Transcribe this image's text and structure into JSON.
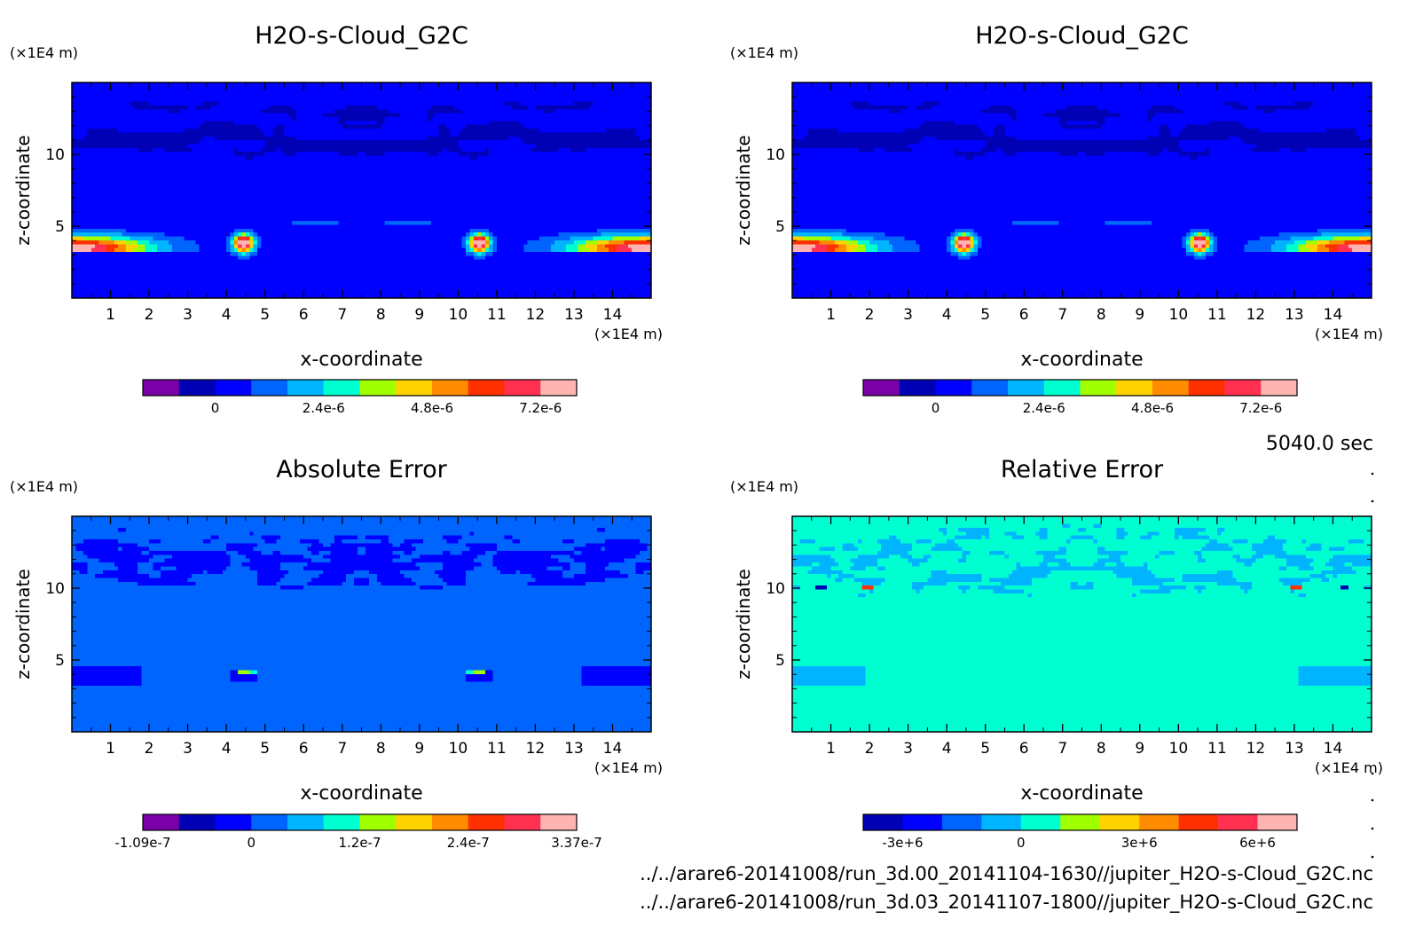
{
  "time_label": "5040.0 sec",
  "files": [
    "../../arare6-20141008/run_3d.00_20141104-1630//jupiter_H2O-s-Cloud_G2C.nc",
    "../../arare6-20141008/run_3d.03_20141107-1800//jupiter_H2O-s-Cloud_G2C.nc"
  ],
  "chart_data": [
    {
      "type": "heatmap",
      "title": "H2O-s-Cloud_G2C",
      "xlabel": "x-coordinate",
      "ylabel": "z-coordinate",
      "x_unit": "(×1E4 m)",
      "y_unit": "(×1E4 m)",
      "xlim": [
        0,
        15
      ],
      "ylim": [
        0,
        15
      ],
      "x_ticks": [
        1,
        2,
        3,
        4,
        5,
        6,
        7,
        8,
        9,
        10,
        11,
        12,
        13,
        14
      ],
      "y_ticks": [
        5,
        10
      ],
      "field": "cloud",
      "colorbar": {
        "colors": [
          "#7b00a8",
          "#0000b4",
          "#0000ff",
          "#0064ff",
          "#00b4ff",
          "#00ffd0",
          "#a0ff00",
          "#ffd200",
          "#ff8c00",
          "#ff3000",
          "#ff3050",
          "#ffb4b4"
        ],
        "tick_labels": [
          "0",
          "2.4e-6",
          "4.8e-6",
          "7.2e-6"
        ],
        "tick_bins": [
          2,
          5,
          8,
          11
        ]
      }
    },
    {
      "type": "heatmap",
      "title": "H2O-s-Cloud_G2C",
      "xlabel": "x-coordinate",
      "ylabel": "z-coordinate",
      "x_unit": "(×1E4 m)",
      "y_unit": "(×1E4 m)",
      "xlim": [
        0,
        15
      ],
      "ylim": [
        0,
        15
      ],
      "x_ticks": [
        1,
        2,
        3,
        4,
        5,
        6,
        7,
        8,
        9,
        10,
        11,
        12,
        13,
        14
      ],
      "y_ticks": [
        5,
        10
      ],
      "field": "cloud",
      "colorbar": {
        "colors": [
          "#7b00a8",
          "#0000b4",
          "#0000ff",
          "#0064ff",
          "#00b4ff",
          "#00ffd0",
          "#a0ff00",
          "#ffd200",
          "#ff8c00",
          "#ff3000",
          "#ff3050",
          "#ffb4b4"
        ],
        "tick_labels": [
          "0",
          "2.4e-6",
          "4.8e-6",
          "7.2e-6"
        ],
        "tick_bins": [
          2,
          5,
          8,
          11
        ]
      }
    },
    {
      "type": "heatmap",
      "title": "Absolute Error",
      "xlabel": "x-coordinate",
      "ylabel": "z-coordinate",
      "x_unit": "(×1E4 m)",
      "y_unit": "(×1E4 m)",
      "xlim": [
        0,
        15
      ],
      "ylim": [
        0,
        15
      ],
      "x_ticks": [
        1,
        2,
        3,
        4,
        5,
        6,
        7,
        8,
        9,
        10,
        11,
        12,
        13,
        14
      ],
      "y_ticks": [
        5,
        10
      ],
      "field": "abs",
      "colorbar": {
        "colors": [
          "#7b00a8",
          "#0000b4",
          "#0000ff",
          "#0064ff",
          "#00b4ff",
          "#00ffd0",
          "#a0ff00",
          "#ffd200",
          "#ff8c00",
          "#ff3000",
          "#ff3050",
          "#ffb4b4"
        ],
        "tick_labels": [
          "-1.09e-7",
          "0",
          "1.2e-7",
          "2.4e-7",
          "3.37e-7"
        ],
        "tick_bins": [
          0,
          3,
          6,
          9,
          12
        ]
      }
    },
    {
      "type": "heatmap",
      "title": "Relative Error",
      "xlabel": "x-coordinate",
      "ylabel": "z-coordinate",
      "x_unit": "(×1E4 m)",
      "y_unit": "(×1E4 m)",
      "xlim": [
        0,
        15
      ],
      "ylim": [
        0,
        15
      ],
      "x_ticks": [
        1,
        2,
        3,
        4,
        5,
        6,
        7,
        8,
        9,
        10,
        11,
        12,
        13,
        14
      ],
      "y_ticks": [
        5,
        10
      ],
      "field": "rel",
      "colorbar": {
        "colors": [
          "#0000b4",
          "#0000ff",
          "#0064ff",
          "#00b4ff",
          "#00ffd0",
          "#a0ff00",
          "#ffd200",
          "#ff8c00",
          "#ff3000",
          "#ff3050",
          "#ffb4b4"
        ],
        "tick_labels": [
          "-3e+6",
          "0",
          "3e+6",
          "6e+6"
        ],
        "tick_bins": [
          1,
          4,
          7,
          10
        ]
      }
    }
  ]
}
